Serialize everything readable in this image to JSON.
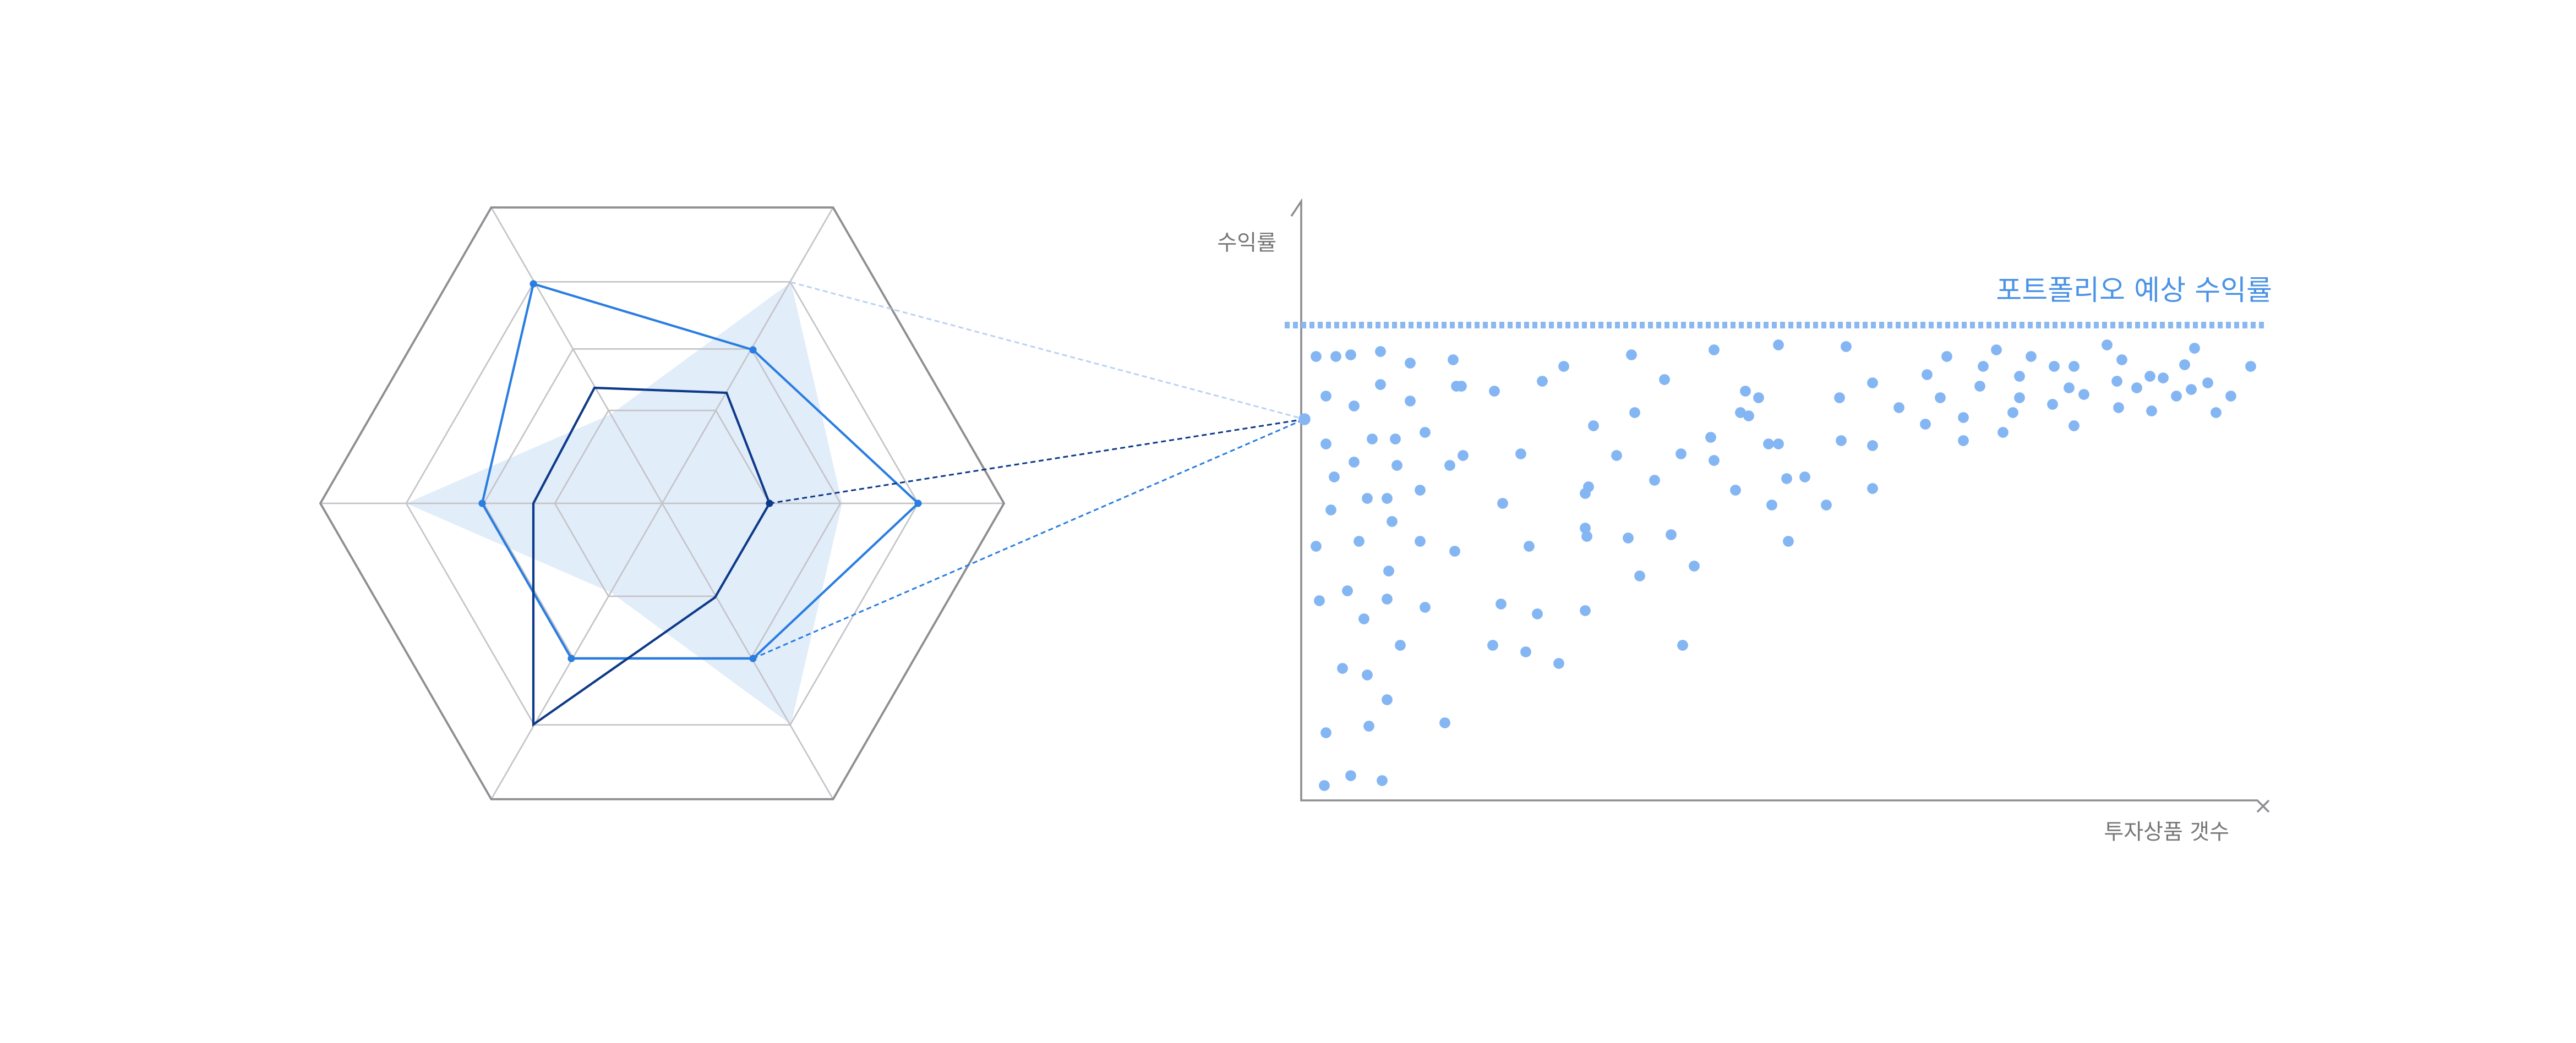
{
  "y_axis_label": "수익률",
  "x_axis_label": "투자상품 갯수",
  "reference_line_label": "포트폴리오 예상 수익률"
}
